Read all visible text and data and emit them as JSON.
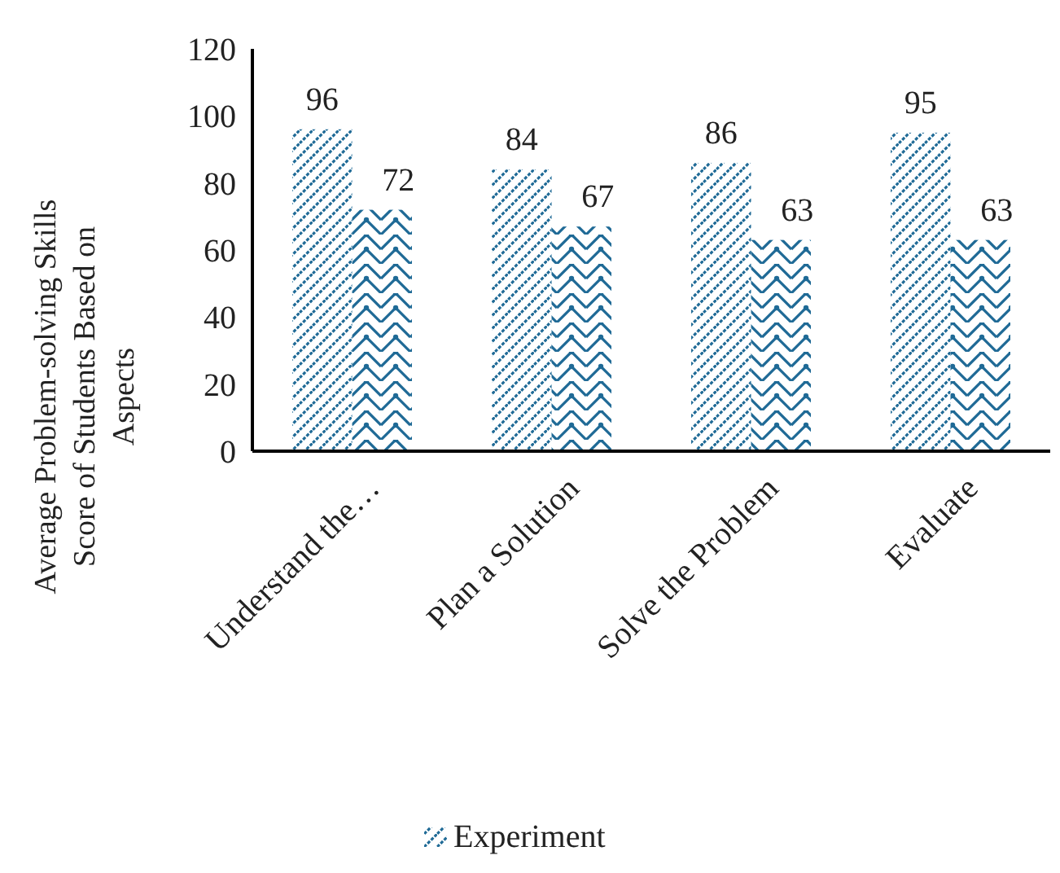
{
  "chart_data": {
    "type": "bar",
    "ylabel": "Average Problem-solving Skills Score of Students Based on Aspects",
    "categories": [
      "Understand the…",
      "Plan a Solution",
      "Solve the Problem",
      "Evaluate"
    ],
    "series": [
      {
        "name": "Experiment",
        "color": "#1f6a96",
        "values": [
          96,
          84,
          86,
          95
        ]
      },
      {
        "color": "#1f6a96",
        "values": [
          72,
          67,
          63,
          63
        ]
      }
    ],
    "ylim": [
      0,
      120
    ],
    "yticks": [
      0,
      20,
      40,
      60,
      80,
      100,
      120
    ],
    "data_labels": true,
    "legend": "bottom",
    "grid": false
  }
}
